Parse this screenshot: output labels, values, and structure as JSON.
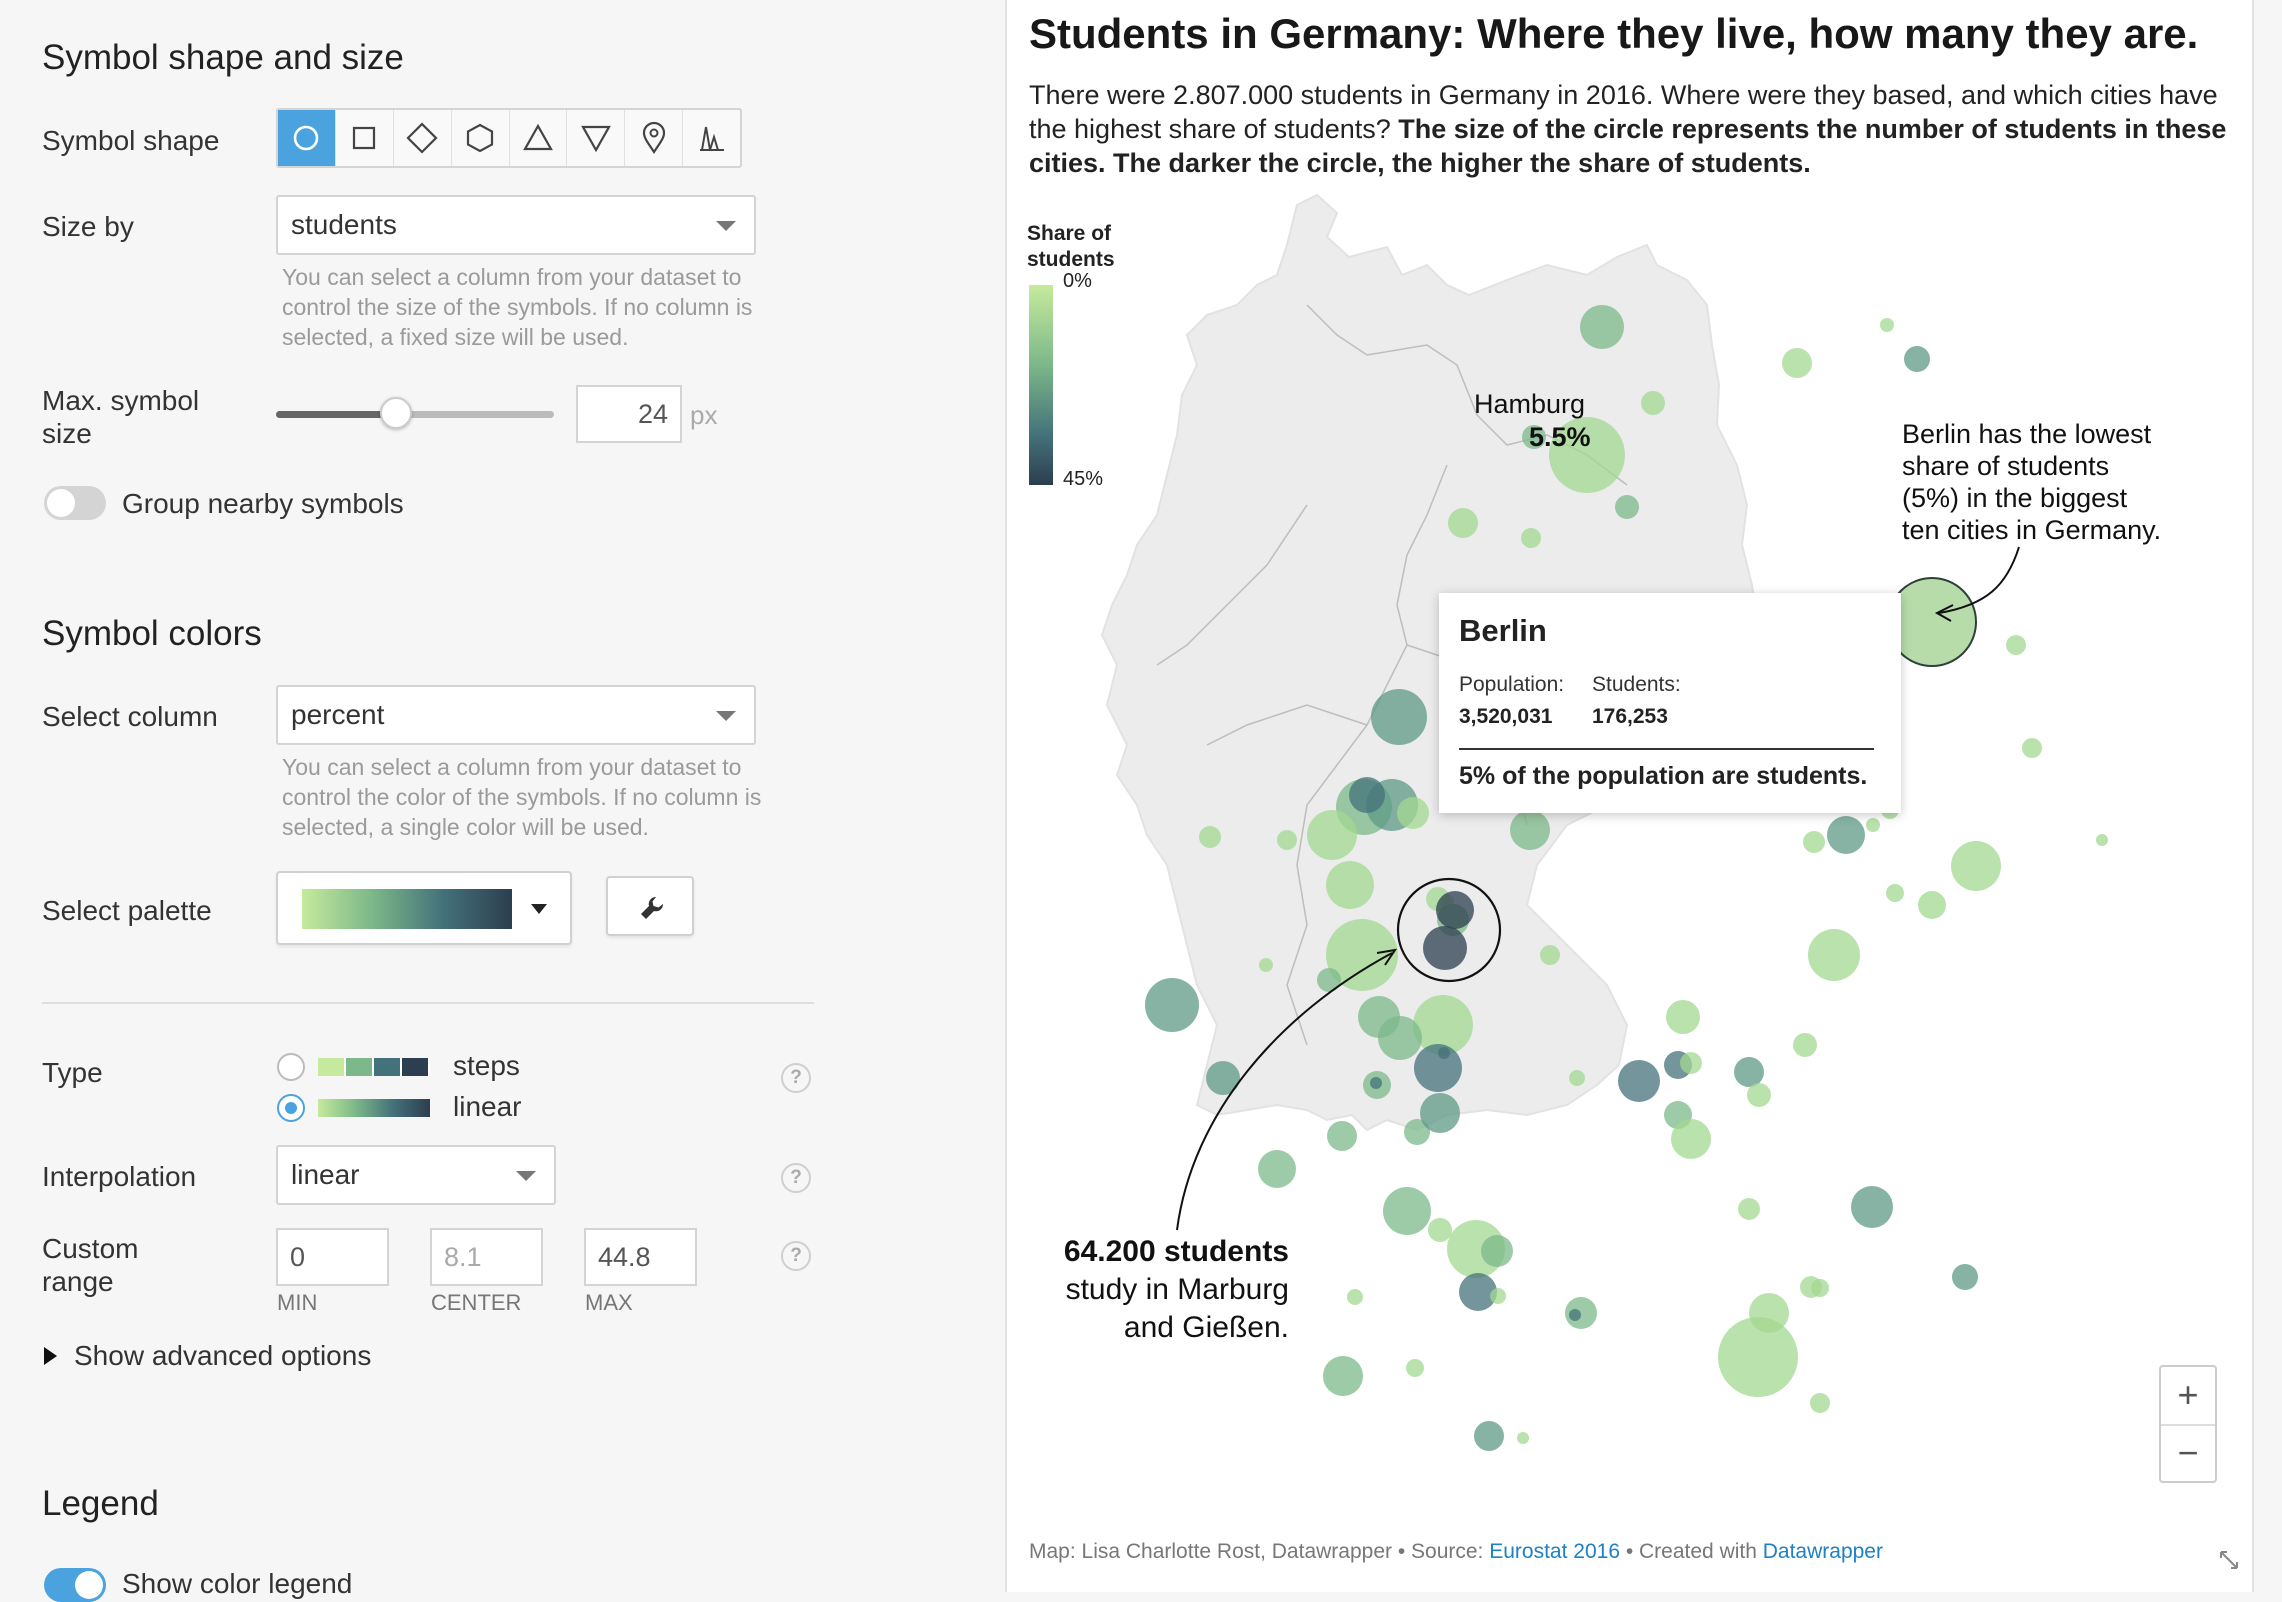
{
  "panel": {
    "shape_section": {
      "heading": "Symbol shape and size",
      "symbol_shape_label": "Symbol shape",
      "shapes": [
        "circle-icon",
        "square-icon",
        "diamond-icon",
        "hexagon-icon",
        "triangle-up-icon",
        "triangle-down-icon",
        "marker-pin-icon",
        "spike-icon"
      ],
      "active_shape": "circle-icon",
      "size_by_label": "Size by",
      "size_by_value": "students",
      "size_by_help": "You can select a column from your dataset to control the size of the symbols. If no column is selected, a fixed size will be used.",
      "max_size_label": "Max. symbol size",
      "max_size_value": "24",
      "max_size_unit": "px",
      "max_size_slider_fraction": 0.43,
      "group_label": "Group nearby symbols",
      "group_on": false
    },
    "color_section": {
      "heading": "Symbol colors",
      "select_column_label": "Select column",
      "select_column_value": "percent",
      "select_column_help": "You can select a column from your dataset to control the color of the symbols. If no column is selected, a single color will be used.",
      "palette_label": "Select palette",
      "palette_colors": [
        "#c6ea9d",
        "#7cb889",
        "#44727a",
        "#2c3e4f"
      ],
      "wrench_icon": "wrench-icon",
      "type_label": "Type",
      "type_options": [
        {
          "label": "steps",
          "selected": false
        },
        {
          "label": "linear",
          "selected": true
        }
      ],
      "interpolation_label": "Interpolation",
      "interpolation_value": "linear",
      "custom_range_label": "Custom range",
      "range_min": "0",
      "range_center": "8.1",
      "range_max": "44.8",
      "range_min_caption": "MIN",
      "range_center_caption": "CENTER",
      "range_max_caption": "MAX",
      "advanced_label": "Show advanced options"
    },
    "legend_section": {
      "heading": "Legend",
      "show_color_legend_label": "Show color legend",
      "show_color_legend_on": true
    },
    "help_mark": "?"
  },
  "preview": {
    "title": "Students in Germany: Where they live, how many they are.",
    "intro_plain": "There were 2.807.000 students in Germany in 2016. Where were they based, and which cities have the highest share of students? ",
    "intro_bold": "The size of the circle represents the number of students in these cities. The darker the circle, the higher the share of students.",
    "legend": {
      "title": "Share of students",
      "min_label": "0%",
      "max_label": "45%"
    },
    "annotations": {
      "hamburg_city": "Hamburg",
      "hamburg_value": "5.5%",
      "berlin_note": [
        "Berlin has the lowest",
        "share of students",
        "(5%) in the biggest",
        "ten cities in Germany."
      ],
      "marburg_bold": "64.200 students",
      "marburg_rest": [
        "study in Marburg",
        "and Gießen."
      ]
    },
    "tooltip": {
      "city": "Berlin",
      "population_label": "Population:",
      "population_value": "3,520,031",
      "students_label": "Students:",
      "students_value": "176,253",
      "summary": "5% of the population are students."
    },
    "zoom": {
      "plus": "+",
      "minus": "−"
    },
    "footer": {
      "prefix": "Map: Lisa Charlotte Rost, Datawrapper • Source: ",
      "source_link": "Eurostat 2016",
      "middle": " • Created with ",
      "dw_link": "Datawrapper"
    }
  }
}
